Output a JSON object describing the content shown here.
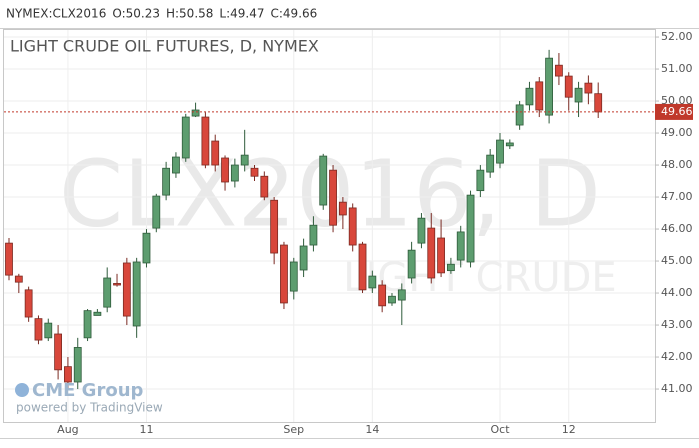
{
  "chart_data": {
    "type": "candlestick",
    "header": [
      "NYMEX:CLX2016",
      "O:50.23",
      "H:50.58",
      "L:49.47",
      "C:49.66"
    ],
    "title": "LIGHT CRUDE OIL FUTURES, D, NYMEX",
    "watermark": "CLX2016, D",
    "watermark_sub": "LIGHT CRUDE",
    "logo": "CME Group",
    "credit": "powered by TradingView",
    "categories": [
      null,
      null,
      null,
      null,
      null,
      null,
      "Aug",
      null,
      null,
      null,
      null,
      null,
      null,
      null,
      "11",
      null,
      null,
      null,
      null,
      null,
      null,
      null,
      null,
      null,
      null,
      null,
      null,
      null,
      null,
      "Sep",
      null,
      null,
      null,
      null,
      null,
      null,
      null,
      "14",
      null,
      null,
      null,
      null,
      null,
      null,
      null,
      null,
      null,
      null,
      null,
      null,
      "Oct",
      null,
      null,
      null,
      null,
      null,
      null,
      "12",
      null,
      null,
      null
    ],
    "open": [
      45.56,
      44.53,
      44.1,
      43.2,
      42.6,
      42.72,
      41.7,
      41.22,
      42.6,
      43.3,
      43.56,
      44.3,
      44.94,
      42.97,
      44.94,
      46.03,
      47.06,
      47.75,
      48.22,
      49.53,
      49.5,
      48.75,
      48.22,
      47.5,
      48.0,
      47.9,
      47.65,
      46.9,
      45.5,
      44.06,
      44.72,
      45.5,
      46.75,
      47.84,
      46.84,
      46.66,
      45.53,
      44.16,
      44.25,
      43.69,
      43.78,
      44.47,
      45.56,
      46.03,
      45.72,
      44.7,
      45.03,
      44.97,
      47.2,
      47.78,
      48.06,
      48.6,
      49.25,
      49.88,
      50.6,
      49.56,
      51.12,
      50.78,
      49.97,
      50.56,
      50.23
    ],
    "high": [
      45.72,
      44.6,
      44.2,
      43.3,
      43.2,
      43.0,
      42.0,
      42.6,
      43.5,
      43.5,
      44.8,
      44.6,
      45.1,
      45.1,
      46.0,
      47.1,
      48.1,
      48.4,
      49.6,
      49.95,
      49.65,
      48.95,
      48.3,
      48.2,
      49.1,
      48.0,
      47.8,
      47.0,
      45.6,
      45.1,
      45.7,
      46.4,
      48.35,
      48.0,
      47.0,
      46.8,
      45.6,
      44.7,
      44.4,
      44.0,
      44.3,
      45.6,
      46.5,
      46.5,
      46.3,
      45.1,
      46.1,
      47.2,
      48.0,
      48.5,
      49.0,
      48.8,
      50.0,
      50.6,
      50.75,
      51.6,
      51.5,
      50.9,
      50.6,
      50.8,
      50.58
    ],
    "low": [
      44.4,
      44.0,
      43.1,
      42.4,
      42.5,
      41.3,
      41.0,
      41.0,
      42.5,
      43.3,
      43.4,
      44.2,
      43.0,
      42.6,
      44.8,
      45.9,
      46.9,
      47.6,
      48.1,
      49.5,
      47.9,
      47.8,
      47.2,
      47.3,
      47.8,
      47.5,
      46.9,
      44.9,
      43.5,
      43.8,
      44.5,
      45.3,
      46.6,
      45.9,
      46.0,
      45.3,
      44.0,
      44.0,
      43.4,
      43.6,
      43.0,
      44.3,
      45.4,
      44.3,
      44.5,
      44.6,
      44.8,
      44.8,
      47.0,
      47.6,
      47.9,
      48.5,
      49.1,
      49.7,
      49.5,
      49.3,
      50.5,
      49.7,
      49.5,
      49.9,
      49.47
    ],
    "close": [
      44.56,
      44.34,
      43.25,
      42.53,
      43.06,
      41.6,
      41.22,
      42.3,
      43.45,
      43.4,
      44.47,
      44.25,
      43.28,
      44.97,
      45.87,
      47.03,
      47.9,
      48.25,
      49.5,
      49.72,
      48.0,
      48.0,
      47.47,
      48.0,
      48.31,
      47.65,
      47.0,
      45.25,
      43.69,
      44.97,
      45.47,
      46.12,
      48.28,
      46.12,
      46.44,
      45.5,
      44.1,
      44.53,
      43.6,
      43.9,
      44.1,
      45.34,
      46.34,
      44.47,
      44.63,
      44.9,
      45.91,
      47.06,
      47.84,
      48.31,
      48.78,
      48.69,
      49.88,
      50.4,
      49.72,
      51.34,
      50.78,
      50.12,
      50.4,
      50.25,
      49.66
    ],
    "up_color": "#5d9d6f",
    "down_color": "#d8473b",
    "last_price": 49.66,
    "last_price_color": "#c0392b",
    "ylim": [
      39.97,
      52.22
    ],
    "yticks": [
      {
        "value": 41,
        "label": "41.00"
      },
      {
        "value": 42,
        "label": "42.00"
      },
      {
        "value": 43,
        "label": "43.00"
      },
      {
        "value": 44,
        "label": "44.00"
      },
      {
        "value": 45,
        "label": "45.00"
      },
      {
        "value": 46,
        "label": "46.00"
      },
      {
        "value": 47,
        "label": "47.00"
      },
      {
        "value": 48,
        "label": "48.00"
      },
      {
        "value": 49,
        "label": "49.00"
      },
      {
        "value": 50,
        "label": "50.00"
      },
      {
        "value": 51,
        "label": "51.00"
      },
      {
        "value": 52,
        "label": "52.00"
      }
    ],
    "grid": true
  }
}
